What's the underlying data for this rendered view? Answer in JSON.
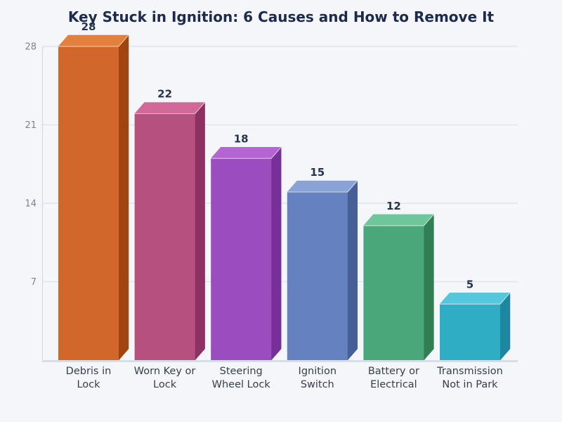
{
  "page": {
    "background": "#f4f6fa"
  },
  "chart_data": {
    "type": "bar",
    "style": "3d-column",
    "title": "Key Stuck in Ignition: 6 Causes and How to Remove It",
    "xlabel": "",
    "ylabel": "",
    "ylim": [
      0,
      28
    ],
    "y_ticks": [
      7,
      14,
      21,
      28
    ],
    "grid": true,
    "legend": false,
    "categories": [
      "Debris in Lock",
      "Worn Key or Lock",
      "Steering Wheel Lock",
      "Ignition Switch",
      "Battery or Electrical",
      "Transmission Not in Park"
    ],
    "category_lines": [
      [
        "Debris in",
        "Lock"
      ],
      [
        "Worn Key or",
        "Lock"
      ],
      [
        "Steering",
        "Wheel Lock"
      ],
      [
        "Ignition",
        "Switch"
      ],
      [
        "Battery or",
        "Electrical"
      ],
      [
        "Transmission",
        "Not in Park"
      ]
    ],
    "values": [
      28,
      22,
      18,
      15,
      12,
      5
    ],
    "value_labels": [
      "28",
      "22",
      "18",
      "15",
      "12",
      "5"
    ],
    "bar_colors": [
      {
        "front": "#d2672c",
        "top": "#e5803c",
        "side": "#a04410"
      },
      {
        "front": "#b6517f",
        "top": "#d0689a",
        "side": "#8d3162"
      },
      {
        "front": "#9b4cbe",
        "top": "#b565d3",
        "side": "#772f99"
      },
      {
        "front": "#6581c0",
        "top": "#8aa3d6",
        "side": "#475f97"
      },
      {
        "front": "#4aa77a",
        "top": "#6ec79b",
        "side": "#2f7e54"
      },
      {
        "front": "#2eadc4",
        "top": "#54c7dc",
        "side": "#1d86a1"
      }
    ],
    "colors": {
      "background": "#f4f6fa",
      "gridline": "#e1e4eb",
      "axis_line": "#d5d9e1",
      "title_text": "#1c2b4c",
      "tick_label": "#7c8496",
      "category_label": "#363d4d",
      "value_label": "#27334e",
      "bar_edge_highlight": "rgba(255,255,255,0.55)"
    }
  }
}
